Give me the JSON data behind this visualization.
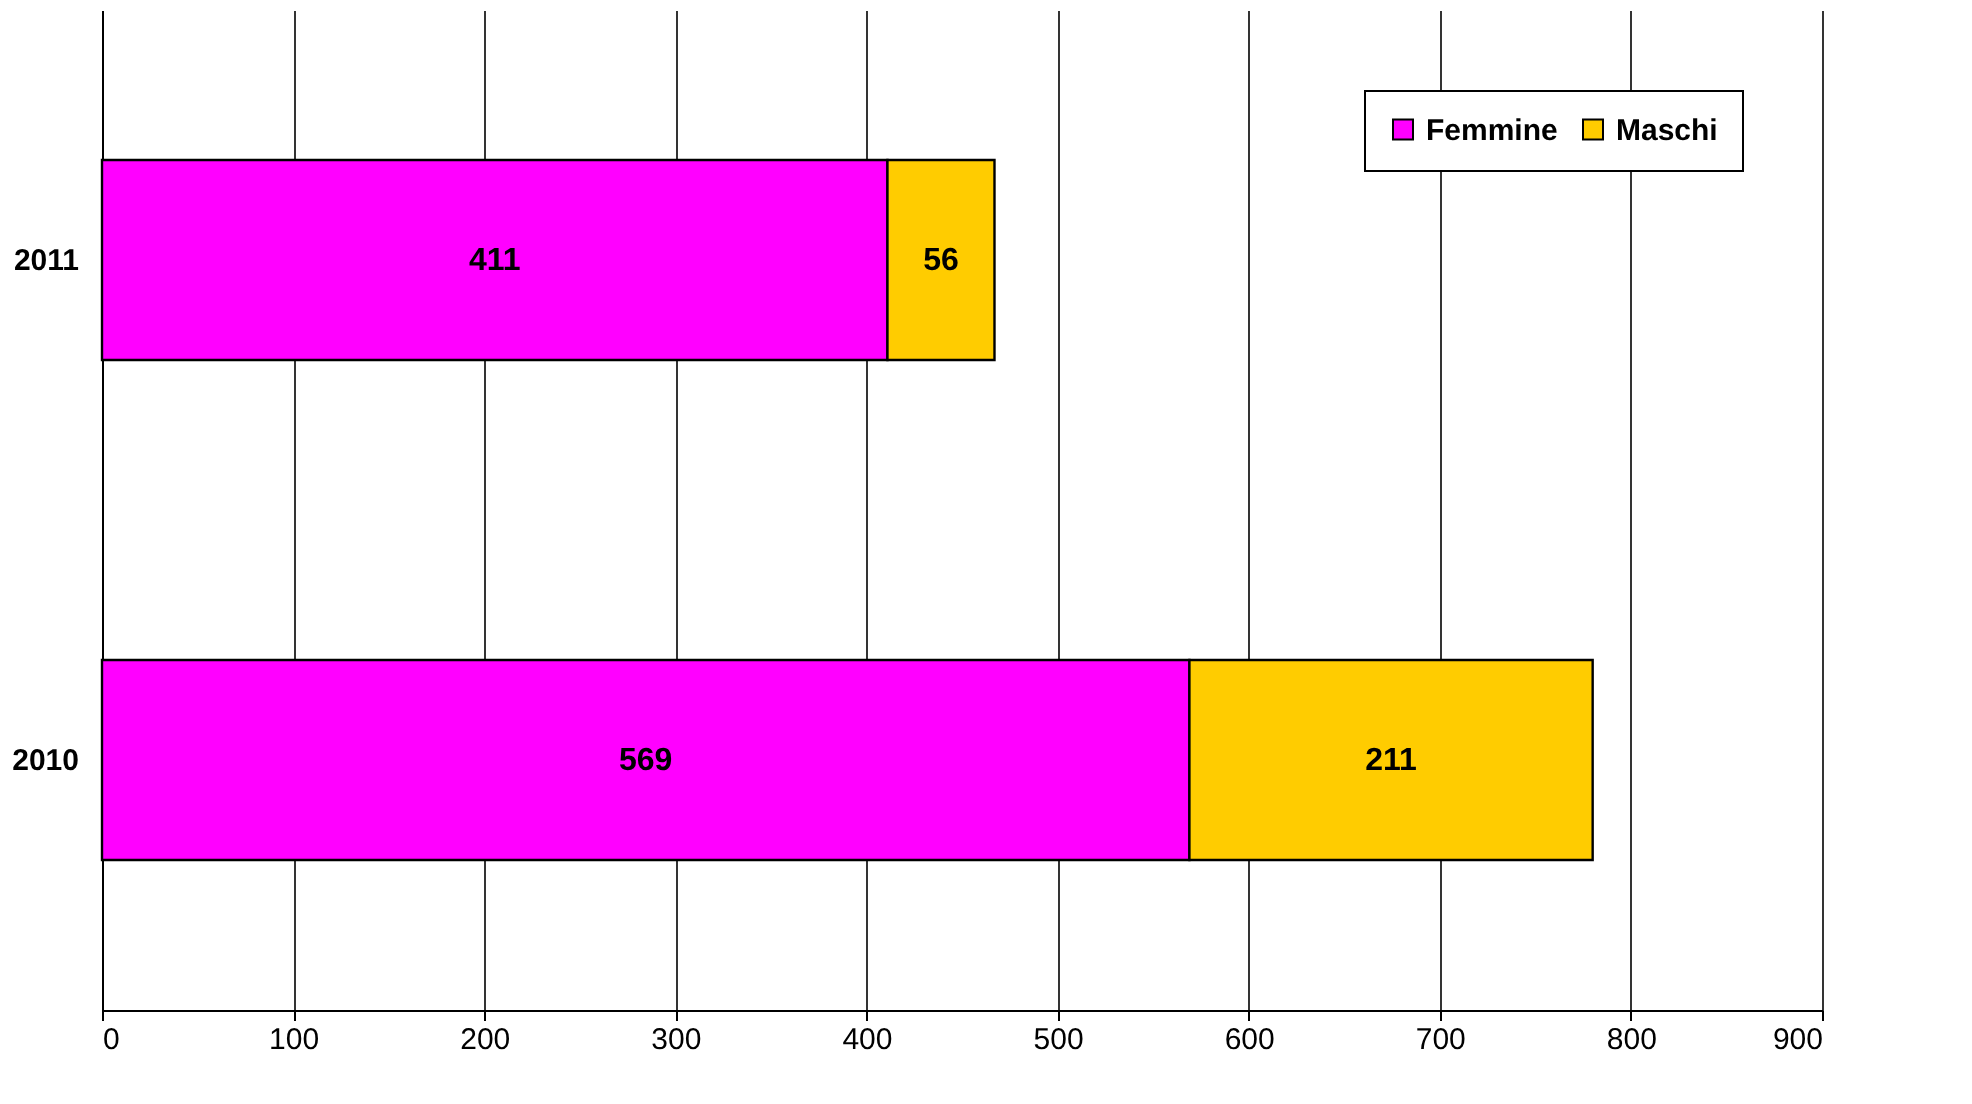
{
  "chart_data": {
    "type": "bar",
    "orientation": "horizontal",
    "stacked": true,
    "categories": [
      "2011",
      "2010"
    ],
    "series": [
      {
        "name": "Femmine",
        "color": "#ff00ff",
        "values": [
          411,
          569
        ]
      },
      {
        "name": "Maschi",
        "color": "#ffcc00",
        "values": [
          56,
          211
        ]
      }
    ],
    "xlim": [
      0,
      900
    ],
    "xticks": [
      0,
      100,
      200,
      300,
      400,
      500,
      600,
      700,
      800,
      900
    ],
    "grid": "x",
    "legend": "top right",
    "data_labels": true
  }
}
